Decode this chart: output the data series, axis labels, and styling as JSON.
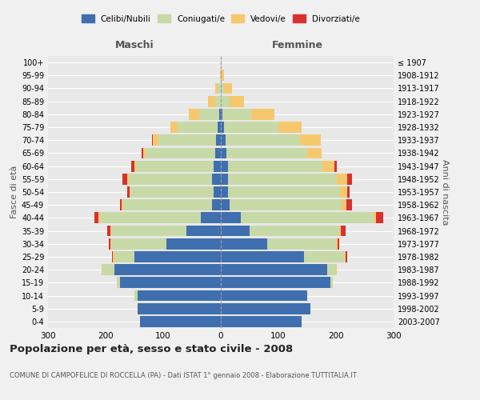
{
  "age_groups": [
    "0-4",
    "5-9",
    "10-14",
    "15-19",
    "20-24",
    "25-29",
    "30-34",
    "35-39",
    "40-44",
    "45-49",
    "50-54",
    "55-59",
    "60-64",
    "65-69",
    "70-74",
    "75-79",
    "80-84",
    "85-89",
    "90-94",
    "95-99",
    "100+"
  ],
  "year_labels": [
    "2003-2007",
    "1998-2002",
    "1993-1997",
    "1988-1992",
    "1983-1987",
    "1978-1982",
    "1973-1977",
    "1968-1972",
    "1963-1967",
    "1958-1962",
    "1953-1957",
    "1948-1952",
    "1943-1947",
    "1938-1942",
    "1933-1937",
    "1928-1932",
    "1923-1927",
    "1918-1922",
    "1913-1917",
    "1908-1912",
    "≤ 1907"
  ],
  "male_celibi": [
    140,
    145,
    145,
    175,
    185,
    150,
    95,
    60,
    35,
    15,
    12,
    15,
    12,
    10,
    8,
    5,
    3,
    0,
    0,
    0,
    0
  ],
  "male_coniugati": [
    0,
    0,
    5,
    5,
    20,
    35,
    95,
    130,
    175,
    155,
    145,
    145,
    135,
    120,
    100,
    70,
    35,
    10,
    5,
    0,
    0
  ],
  "male_vedovi": [
    0,
    0,
    0,
    0,
    2,
    2,
    2,
    2,
    2,
    2,
    2,
    3,
    3,
    5,
    10,
    12,
    18,
    12,
    5,
    2,
    0
  ],
  "male_divorziati": [
    0,
    0,
    0,
    0,
    0,
    2,
    2,
    5,
    8,
    3,
    3,
    8,
    5,
    2,
    2,
    0,
    0,
    0,
    0,
    0,
    0
  ],
  "female_celibi": [
    140,
    155,
    150,
    190,
    185,
    145,
    80,
    50,
    35,
    15,
    12,
    12,
    12,
    10,
    8,
    5,
    3,
    0,
    0,
    0,
    0
  ],
  "female_coniugati": [
    0,
    0,
    0,
    5,
    15,
    70,
    120,
    155,
    230,
    195,
    195,
    190,
    165,
    140,
    130,
    95,
    50,
    15,
    5,
    0,
    0
  ],
  "female_vedovi": [
    0,
    0,
    0,
    0,
    2,
    2,
    3,
    3,
    5,
    8,
    12,
    18,
    20,
    25,
    35,
    40,
    40,
    25,
    15,
    5,
    2
  ],
  "female_divorziati": [
    0,
    0,
    0,
    0,
    0,
    2,
    3,
    8,
    12,
    10,
    5,
    8,
    5,
    0,
    0,
    0,
    0,
    0,
    0,
    0,
    0
  ],
  "color_celibi": "#3f6fae",
  "color_coniugati": "#c8d9a8",
  "color_vedovi": "#f5c86e",
  "color_divorziati": "#d93030",
  "xlim": 300,
  "background_color": "#f0f0f0",
  "plot_bg_color": "#e8e8e8",
  "title": "Popolazione per età, sesso e stato civile - 2008",
  "subtitle": "COMUNE DI CAMPOFELICE DI ROCCELLA (PA) - Dati ISTAT 1° gennaio 2008 - Elaborazione TUTTITALIA.IT",
  "ylabel": "Fasce di età",
  "ylabel_right": "Anni di nascita"
}
